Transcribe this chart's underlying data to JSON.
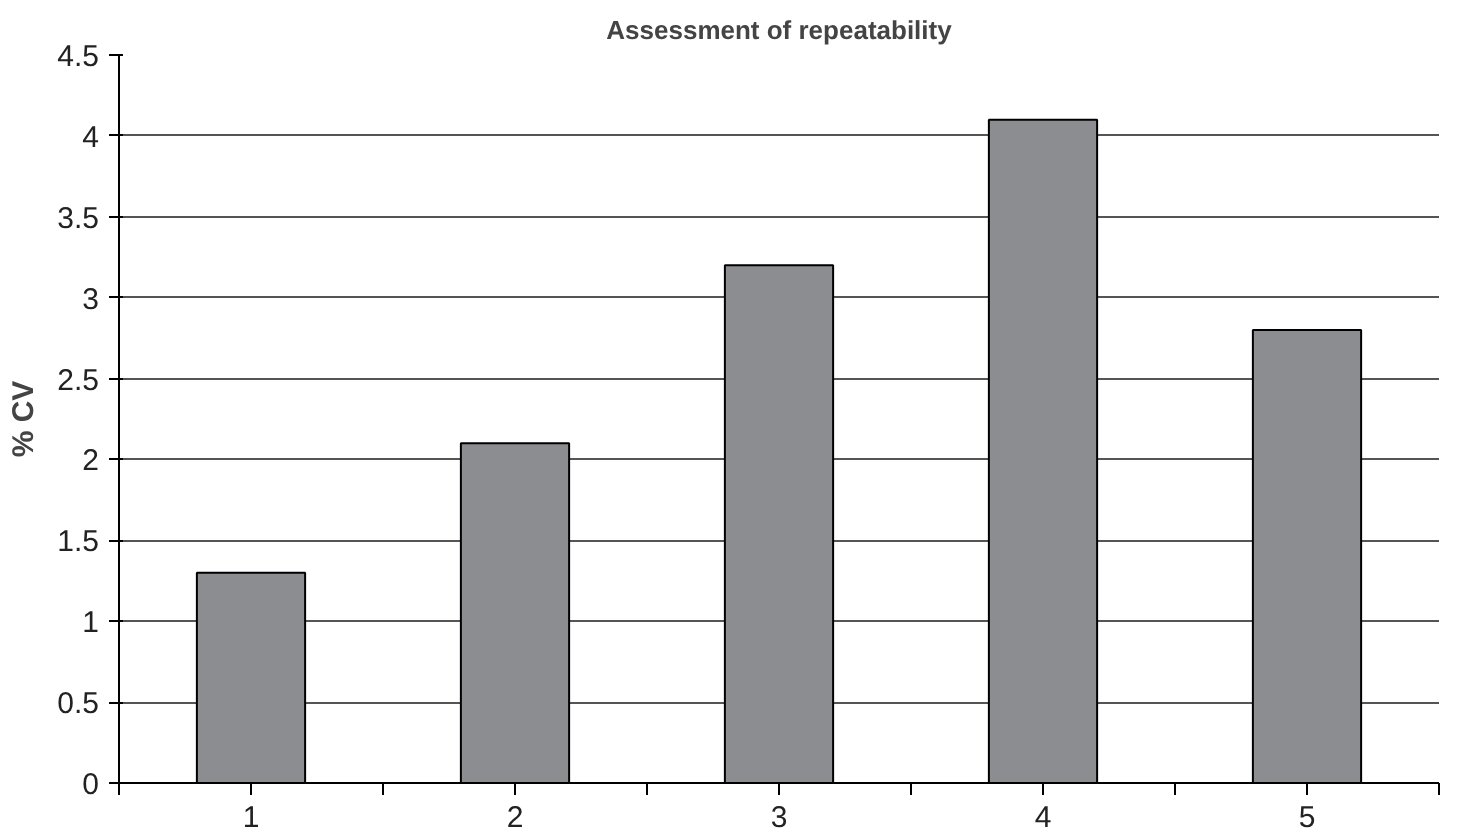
{
  "chart_data": {
    "type": "bar",
    "title": "Assessment of repeatability",
    "ylabel": "% CV",
    "categories": [
      "1",
      "2",
      "3",
      "4",
      "5"
    ],
    "values": [
      1.3,
      2.1,
      3.2,
      4.1,
      2.8
    ],
    "color": "#8c8d91",
    "ylim": [
      0,
      4.5
    ],
    "yticks": [
      0,
      0.5,
      1,
      1.5,
      2,
      2.5,
      3,
      3.5,
      4,
      4.5
    ],
    "grid": "y"
  }
}
